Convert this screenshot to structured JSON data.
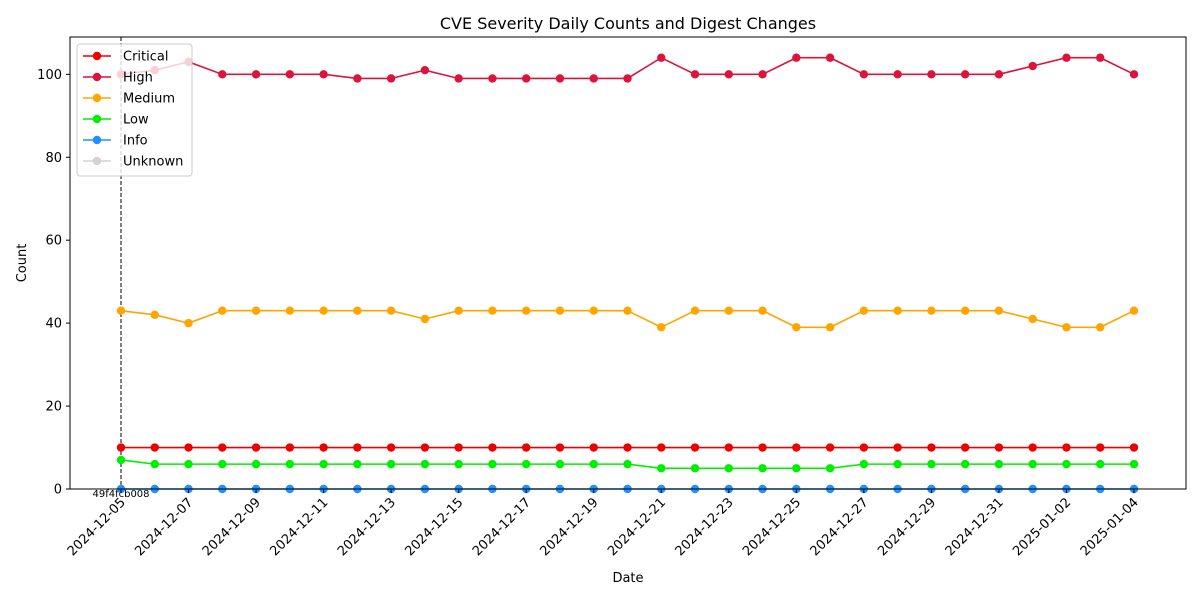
{
  "chart_data": {
    "type": "line",
    "title": "CVE Severity Daily Counts and Digest Changes",
    "xlabel": "Date",
    "ylabel": "Count",
    "ylim": [
      0,
      109
    ],
    "yticks": [
      0,
      20,
      40,
      60,
      80,
      100
    ],
    "x": [
      "2024-12-05",
      "2024-12-06",
      "2024-12-07",
      "2024-12-08",
      "2024-12-09",
      "2024-12-10",
      "2024-12-11",
      "2024-12-12",
      "2024-12-13",
      "2024-12-14",
      "2024-12-15",
      "2024-12-16",
      "2024-12-17",
      "2024-12-18",
      "2024-12-19",
      "2024-12-20",
      "2024-12-21",
      "2024-12-22",
      "2024-12-23",
      "2024-12-24",
      "2024-12-25",
      "2024-12-26",
      "2024-12-27",
      "2024-12-28",
      "2024-12-29",
      "2024-12-30",
      "2024-12-31",
      "2025-01-01",
      "2025-01-02",
      "2025-01-03",
      "2025-01-04"
    ],
    "xtick_labels": [
      "2024-12-05",
      "2024-12-07",
      "2024-12-09",
      "2024-12-11",
      "2024-12-13",
      "2024-12-15",
      "2024-12-17",
      "2024-12-19",
      "2024-12-21",
      "2024-12-23",
      "2024-12-25",
      "2024-12-27",
      "2024-12-29",
      "2024-12-31",
      "2025-01-02",
      "2025-01-04"
    ],
    "legend_position": "top-left",
    "grid": false,
    "series": [
      {
        "name": "Critical",
        "color": "#ee0000",
        "values": [
          10,
          10,
          10,
          10,
          10,
          10,
          10,
          10,
          10,
          10,
          10,
          10,
          10,
          10,
          10,
          10,
          10,
          10,
          10,
          10,
          10,
          10,
          10,
          10,
          10,
          10,
          10,
          10,
          10,
          10,
          10
        ]
      },
      {
        "name": "High",
        "color": "#dc143c",
        "values": [
          100,
          101,
          103,
          100,
          100,
          100,
          100,
          99,
          99,
          101,
          99,
          99,
          99,
          99,
          99,
          99,
          104,
          100,
          100,
          100,
          104,
          104,
          100,
          100,
          100,
          100,
          100,
          102,
          104,
          104,
          100
        ]
      },
      {
        "name": "Medium",
        "color": "#ffa500",
        "values": [
          43,
          42,
          40,
          43,
          43,
          43,
          43,
          43,
          43,
          41,
          43,
          43,
          43,
          43,
          43,
          43,
          39,
          43,
          43,
          43,
          39,
          39,
          43,
          43,
          43,
          43,
          43,
          41,
          39,
          39,
          43
        ]
      },
      {
        "name": "Low",
        "color": "#00ee00",
        "values": [
          7,
          6,
          6,
          6,
          6,
          6,
          6,
          6,
          6,
          6,
          6,
          6,
          6,
          6,
          6,
          6,
          5,
          5,
          5,
          5,
          5,
          5,
          6,
          6,
          6,
          6,
          6,
          6,
          6,
          6,
          6
        ]
      },
      {
        "name": "Info",
        "color": "#1e90ff",
        "values": [
          0,
          0,
          0,
          0,
          0,
          0,
          0,
          0,
          0,
          0,
          0,
          0,
          0,
          0,
          0,
          0,
          0,
          0,
          0,
          0,
          0,
          0,
          0,
          0,
          0,
          0,
          0,
          0,
          0,
          0,
          0
        ]
      },
      {
        "name": "Unknown",
        "color": "#d3d3d3",
        "values": [
          0,
          0,
          0,
          0,
          0,
          0,
          0,
          0,
          0,
          0,
          0,
          0,
          0,
          0,
          0,
          0,
          0,
          0,
          0,
          0,
          0,
          0,
          0,
          0,
          0,
          0,
          0,
          0,
          0,
          0,
          0
        ]
      }
    ],
    "annotations": [
      {
        "x": "2024-12-05",
        "label": "49f4fcb008",
        "style": "dashed-vertical-line"
      }
    ]
  }
}
